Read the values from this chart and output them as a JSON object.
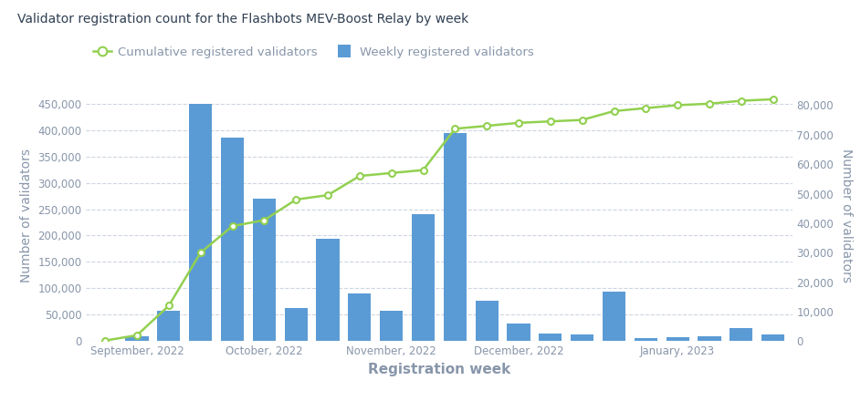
{
  "title": "Validator registration count for the Flashbots MEV-Boost Relay by week",
  "xlabel": "Registration week",
  "ylabel_left": "Number of validators",
  "ylabel_right": "Number of validators",
  "legend_labels": [
    "Cumulative registered validators",
    "Weekly registered validators"
  ],
  "x_tick_labels": [
    "September, 2022",
    "October, 2022",
    "November, 2022",
    "December, 2022",
    "January, 2023"
  ],
  "x_tick_positions": [
    1,
    5,
    9,
    13,
    18
  ],
  "weekly_validators": [
    500,
    10000,
    57000,
    450000,
    385000,
    270000,
    62000,
    194000,
    90000,
    57000,
    240000,
    395000,
    76000,
    34000,
    14000,
    12000,
    93000,
    6000,
    8000,
    10000,
    25000,
    12000
  ],
  "cumulative_validators": [
    200,
    2000,
    12000,
    30000,
    39000,
    41000,
    48000,
    49500,
    56000,
    57000,
    58000,
    72000,
    73000,
    74000,
    74500,
    75000,
    78000,
    79000,
    80000,
    80500,
    81500,
    82000
  ],
  "bar_color": "#5b9bd5",
  "line_color": "#92d050",
  "marker_facecolor": "#ffffff",
  "background_color": "#ffffff",
  "grid_color": "#cdd5e0",
  "title_color": "#2f3f52",
  "axis_label_color": "#8896aa",
  "tick_label_color": "#8896aa",
  "ylim_left": [
    0,
    475000
  ],
  "ylim_right": [
    0,
    85000
  ],
  "left_yticks": [
    0,
    50000,
    100000,
    150000,
    200000,
    250000,
    300000,
    350000,
    400000,
    450000
  ],
  "right_yticks": [
    0,
    10000,
    20000,
    30000,
    40000,
    50000,
    60000,
    70000,
    80000
  ]
}
